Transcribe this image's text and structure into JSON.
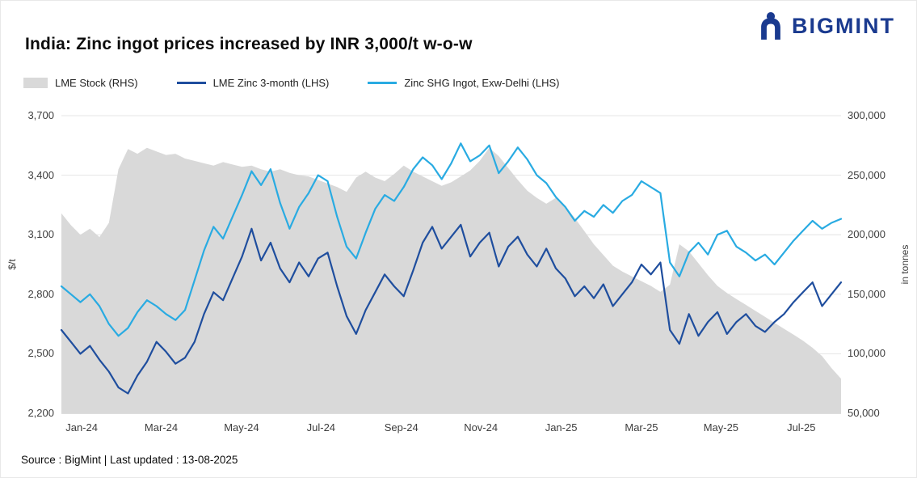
{
  "branding": {
    "name": "BIGMINT",
    "color": "#1a3a8f"
  },
  "title": "India: Zinc ingot prices increased by INR 3,000/t w-o-w",
  "source_note": "Source : BigMint | Last updated : 13-08-2025",
  "chart_data": {
    "type": "line",
    "title": "India: Zinc ingot prices increased by INR 3,000/t w-o-w",
    "grid": true,
    "legend_position": "top",
    "lhs_axis": {
      "label": "$/t",
      "min": 2200,
      "max": 3700,
      "ticks": [
        "3,700",
        "3,400",
        "3,100",
        "2,800",
        "2,500",
        "2,200"
      ]
    },
    "rhs_axis": {
      "label": "in tonnes",
      "min": 50000,
      "max": 300000,
      "ticks": [
        "300,000",
        "250,000",
        "200,000",
        "150,000",
        "100,000",
        "50,000"
      ]
    },
    "x_ticks": [
      {
        "label": "Jan-24",
        "pos": 0.026
      },
      {
        "label": "Mar-24",
        "pos": 0.128
      },
      {
        "label": "May-24",
        "pos": 0.231
      },
      {
        "label": "Jul-24",
        "pos": 0.333
      },
      {
        "label": "Sep-24",
        "pos": 0.436
      },
      {
        "label": "Nov-24",
        "pos": 0.538
      },
      {
        "label": "Jan-25",
        "pos": 0.641
      },
      {
        "label": "Mar-25",
        "pos": 0.744
      },
      {
        "label": "May-25",
        "pos": 0.846
      },
      {
        "label": "Jul-25",
        "pos": 0.949
      }
    ],
    "series": [
      {
        "name": "LME Stock (RHS)",
        "type": "area",
        "axis": "rhs",
        "color": "#d9d9d9",
        "values": [
          218000,
          208000,
          200000,
          205000,
          198000,
          210000,
          255000,
          272000,
          268000,
          273000,
          270000,
          267000,
          268000,
          264000,
          262000,
          260000,
          258000,
          261000,
          259000,
          257000,
          258000,
          255000,
          253000,
          255000,
          252000,
          250000,
          249000,
          246000,
          243000,
          240000,
          236000,
          248000,
          253000,
          248000,
          245000,
          251000,
          258000,
          253000,
          249000,
          245000,
          241000,
          244000,
          249000,
          254000,
          262000,
          273000,
          266000,
          256000,
          246000,
          237000,
          231000,
          226000,
          231000,
          224000,
          214000,
          203000,
          192000,
          183000,
          174000,
          169000,
          165000,
          161000,
          157000,
          152000,
          158000,
          192000,
          186000,
          176000,
          166000,
          157000,
          151000,
          146000,
          141000,
          136000,
          131000,
          126000,
          121000,
          116000,
          111000,
          105000,
          98000,
          88000,
          79000
        ]
      },
      {
        "name": "LME Zinc 3-month (LHS)",
        "type": "line",
        "axis": "lhs",
        "color": "#1f4e9e",
        "values": [
          2620,
          2560,
          2500,
          2540,
          2470,
          2410,
          2330,
          2300,
          2390,
          2460,
          2560,
          2510,
          2450,
          2480,
          2560,
          2700,
          2810,
          2770,
          2880,
          2990,
          3130,
          2970,
          3060,
          2930,
          2860,
          2960,
          2890,
          2980,
          3010,
          2840,
          2690,
          2600,
          2720,
          2810,
          2900,
          2840,
          2790,
          2920,
          3060,
          3140,
          3030,
          3090,
          3150,
          2990,
          3060,
          3110,
          2940,
          3040,
          3090,
          3000,
          2940,
          3030,
          2930,
          2880,
          2790,
          2840,
          2780,
          2850,
          2740,
          2800,
          2860,
          2950,
          2900,
          2960,
          2620,
          2550,
          2700,
          2590,
          2660,
          2710,
          2600,
          2660,
          2700,
          2640,
          2610,
          2660,
          2700,
          2760,
          2810,
          2860,
          2740,
          2800,
          2860
        ]
      },
      {
        "name": "Zinc SHG Ingot, Exw-Delhi (LHS)",
        "type": "line",
        "axis": "lhs",
        "color": "#29abe2",
        "values": [
          2840,
          2800,
          2760,
          2800,
          2740,
          2650,
          2590,
          2630,
          2710,
          2770,
          2740,
          2700,
          2670,
          2720,
          2870,
          3020,
          3140,
          3080,
          3190,
          3300,
          3420,
          3350,
          3430,
          3260,
          3130,
          3240,
          3310,
          3400,
          3370,
          3190,
          3040,
          2980,
          3110,
          3230,
          3300,
          3270,
          3340,
          3430,
          3490,
          3450,
          3380,
          3460,
          3560,
          3470,
          3500,
          3550,
          3410,
          3470,
          3540,
          3480,
          3400,
          3360,
          3290,
          3240,
          3170,
          3220,
          3190,
          3250,
          3210,
          3270,
          3300,
          3370,
          3340,
          3310,
          2960,
          2890,
          3010,
          3060,
          3000,
          3100,
          3120,
          3040,
          3010,
          2970,
          3000,
          2950,
          3010,
          3070,
          3120,
          3170,
          3130,
          3160,
          3180
        ]
      }
    ]
  }
}
